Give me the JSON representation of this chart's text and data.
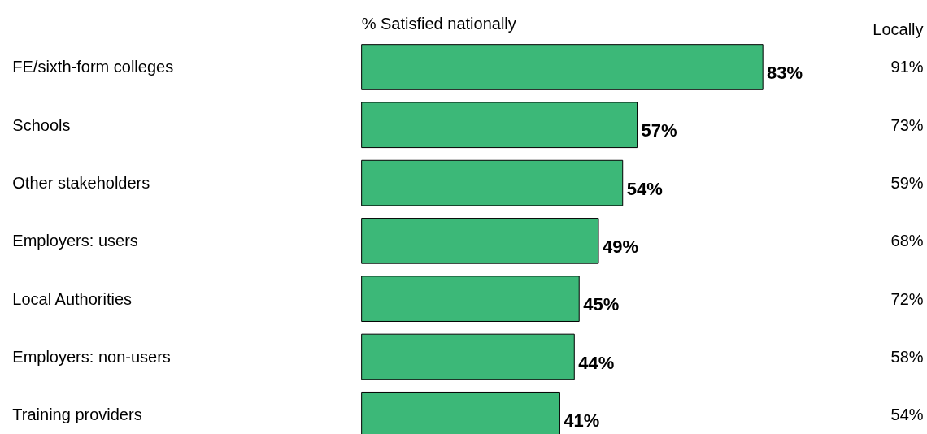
{
  "chart_data": {
    "type": "bar",
    "orientation": "horizontal",
    "title": "% Satisfied nationally",
    "categories": [
      "FE/sixth-form colleges",
      "Schools",
      "Other stakeholders",
      "Employers: users",
      "Local Authorities",
      "Employers: non-users",
      "Training providers"
    ],
    "values": [
      83,
      57,
      54,
      49,
      45,
      44,
      41
    ],
    "value_labels": [
      "83%",
      "57%",
      "54%",
      "49%",
      "45%",
      "44%",
      "41%"
    ],
    "color": "#3cb878",
    "annotations": [
      "Locally",
      "91%",
      "73%",
      "59%",
      "68%",
      "72%",
      "58%",
      "54%"
    ]
  }
}
